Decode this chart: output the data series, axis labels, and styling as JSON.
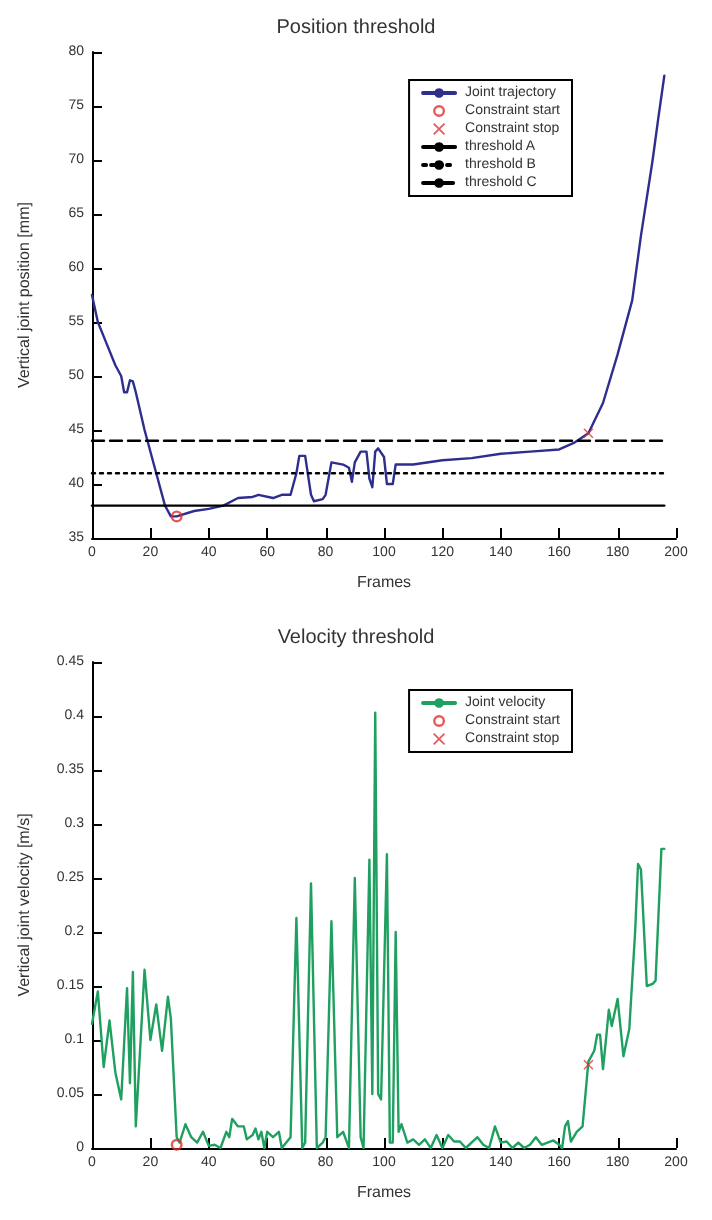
{
  "chart_data": [
    {
      "type": "line",
      "title": "Position threshold",
      "xlabel": "Frames",
      "ylabel": "Vertical joint position [mm]",
      "xlim": [
        0,
        200
      ],
      "ylim": [
        35,
        80
      ],
      "xticks": [
        0,
        20,
        40,
        60,
        80,
        100,
        120,
        140,
        160,
        180,
        200
      ],
      "yticks": [
        35,
        40,
        45,
        50,
        55,
        60,
        65,
        70,
        75,
        80
      ],
      "grid": false,
      "legend": "top right",
      "marker": "none",
      "series": [
        {
          "name": "Joint trajectory",
          "color": "#2e2e8f",
          "line_style": "solid",
          "x": [
            0,
            2,
            5,
            8,
            10,
            11,
            12,
            13,
            14,
            15,
            18,
            22,
            25,
            27,
            29,
            35,
            40,
            45,
            50,
            55,
            57,
            62,
            65,
            68,
            70,
            71,
            73,
            75,
            76,
            79,
            80,
            82,
            86,
            88,
            89,
            90,
            92,
            94,
            95,
            96,
            97,
            98,
            100,
            101,
            103,
            104,
            110,
            120,
            130,
            140,
            150,
            160,
            165,
            170,
            175,
            180,
            185,
            188,
            192,
            194,
            196
          ],
          "values": [
            57.5,
            55,
            53,
            51,
            50,
            48.5,
            48.5,
            49.6,
            49.5,
            48.5,
            45,
            41,
            38,
            37,
            37,
            37.5,
            37.7,
            38,
            38.7,
            38.8,
            39,
            38.7,
            39,
            39,
            41,
            42.6,
            42.6,
            39,
            38.4,
            38.6,
            39,
            42,
            41.8,
            41.5,
            40.2,
            42,
            43,
            43,
            40.5,
            39.7,
            43,
            43.3,
            42.5,
            40,
            40,
            41.8,
            41.8,
            42.2,
            42.4,
            42.8,
            43,
            43.2,
            43.8,
            44.7,
            47.5,
            52,
            57,
            63,
            70,
            74,
            77.8
          ]
        },
        {
          "name": "Constraint start",
          "type": "scatter",
          "marker": "circle",
          "color": "#e03030",
          "x": [
            29
          ],
          "values": [
            37
          ]
        },
        {
          "name": "Constraint stop",
          "type": "scatter",
          "marker": "cross",
          "color": "#e03030",
          "x": [
            170
          ],
          "values": [
            44.7
          ]
        },
        {
          "name": "threshold A",
          "color": "#000000",
          "line_style": "solid",
          "x": [
            0,
            196
          ],
          "values": [
            38,
            38
          ]
        },
        {
          "name": "threshold B",
          "color": "#000000",
          "line_style": "dotted",
          "x": [
            0,
            196
          ],
          "values": [
            41,
            41
          ]
        },
        {
          "name": "threshold C",
          "color": "#000000",
          "line_style": "dashed",
          "x": [
            0,
            196
          ],
          "values": [
            44,
            44
          ]
        }
      ]
    },
    {
      "type": "line",
      "title": "Velocity threshold",
      "xlabel": "Frames",
      "ylabel": "Vertical joint velocity [m/s]",
      "xlim": [
        0,
        200
      ],
      "ylim": [
        0,
        0.45
      ],
      "xticks": [
        0,
        20,
        40,
        60,
        80,
        100,
        120,
        140,
        160,
        180,
        200
      ],
      "yticks": [
        0,
        0.05,
        0.1,
        0.15,
        0.2,
        0.25,
        0.3,
        0.35,
        0.4,
        0.45
      ],
      "grid": false,
      "legend": "top right",
      "marker": "none",
      "series": [
        {
          "name": "Joint velocity",
          "color": "#1fa060",
          "line_style": "solid",
          "x": [
            0,
            2,
            4,
            6,
            8,
            10,
            12,
            13,
            14,
            15,
            18,
            20,
            22,
            24,
            26,
            27,
            29,
            30,
            32,
            34,
            36,
            38,
            40,
            42,
            44,
            46,
            47,
            48,
            50,
            52,
            53,
            55,
            56,
            57,
            58,
            59,
            60,
            62,
            64,
            65,
            68,
            70,
            72,
            73,
            75,
            77,
            79,
            80,
            82,
            84,
            86,
            88,
            90,
            92,
            93,
            95,
            96,
            97,
            98,
            99,
            101,
            102,
            103,
            104,
            105,
            106,
            108,
            110,
            112,
            114,
            116,
            118,
            120,
            122,
            124,
            126,
            128,
            132,
            134,
            136,
            138,
            140,
            142,
            144,
            146,
            148,
            150,
            152,
            154,
            156,
            158,
            160,
            161,
            162,
            163,
            164,
            166,
            168,
            170,
            172,
            173,
            174,
            175,
            176,
            177,
            178,
            180,
            182,
            184,
            186,
            187,
            188,
            190,
            192,
            193,
            195,
            196
          ],
          "values": [
            0.115,
            0.145,
            0.075,
            0.118,
            0.07,
            0.045,
            0.148,
            0.06,
            0.163,
            0.02,
            0.165,
            0.1,
            0.133,
            0.09,
            0.14,
            0.12,
            0.01,
            0.005,
            0.022,
            0.01,
            0.005,
            0.015,
            0.002,
            0.003,
            0,
            0.015,
            0.01,
            0.027,
            0.02,
            0.02,
            0.008,
            0.012,
            0.018,
            0.008,
            0.015,
            0,
            0.015,
            0.01,
            0.015,
            0,
            0.01,
            0.213,
            0,
            0.005,
            0.245,
            0,
            0.005,
            0.01,
            0.21,
            0.01,
            0.015,
            0,
            0.25,
            0.01,
            0,
            0.267,
            0.05,
            0.403,
            0.05,
            0.045,
            0.272,
            0.005,
            0.005,
            0.2,
            0.015,
            0.022,
            0.005,
            0.008,
            0.003,
            0.008,
            0,
            0.012,
            0,
            0.012,
            0.006,
            0.006,
            0,
            0.01,
            0.003,
            0,
            0.02,
            0.005,
            0.006,
            0,
            0.005,
            0,
            0.003,
            0.01,
            0.003,
            0.005,
            0.007,
            0.003,
            0,
            0.02,
            0.025,
            0.006,
            0.015,
            0.02,
            0.08,
            0.09,
            0.105,
            0.105,
            0.073,
            0.1,
            0.128,
            0.113,
            0.138,
            0.085,
            0.11,
            0.2,
            0.263,
            0.258,
            0.15,
            0.152,
            0.155,
            0.277,
            0.277
          ]
        },
        {
          "name": "Constraint start",
          "type": "scatter",
          "marker": "circle",
          "color": "#e03030",
          "x": [
            29
          ],
          "values": [
            0.003
          ]
        },
        {
          "name": "Constraint stop",
          "type": "scatter",
          "marker": "cross",
          "color": "#e03030",
          "x": [
            170
          ],
          "values": [
            0.077
          ]
        }
      ]
    }
  ]
}
